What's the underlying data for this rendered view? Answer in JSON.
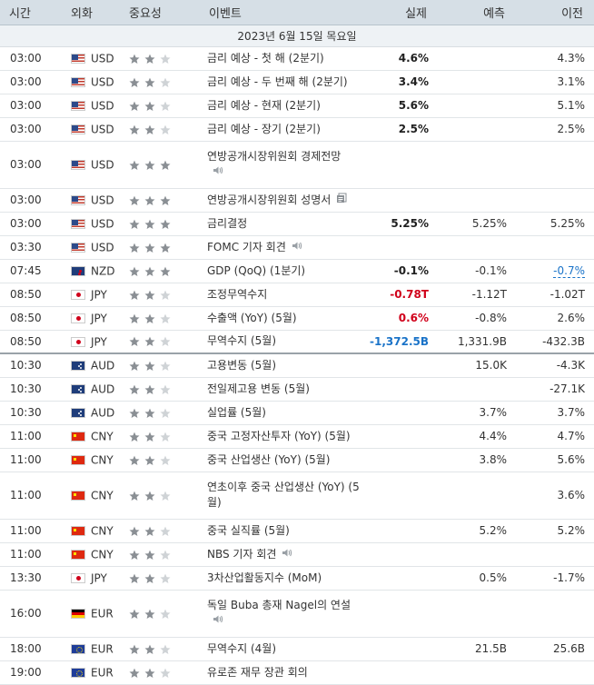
{
  "header": {
    "time": "시간",
    "currency": "외화",
    "importance": "중요성",
    "event": "이벤트",
    "actual": "실제",
    "forecast": "예측",
    "previous": "이전"
  },
  "date_label": "2023년 6월 15일 목요일",
  "colors": {
    "red": "#d0021b",
    "blue": "#1a73c8",
    "header_bg": "#d6dfe6",
    "star_on": "#8a8f94",
    "star_off": "#cfd3d6"
  },
  "rows": [
    {
      "time": "03:00",
      "flag": "us",
      "cur": "USD",
      "stars": 2,
      "event": "금리 예상 - 첫 해 (2분기)",
      "actual": "4.6%",
      "actual_color": "#1f1f1f",
      "forecast": "",
      "previous": "4.3%",
      "icon": ""
    },
    {
      "time": "03:00",
      "flag": "us",
      "cur": "USD",
      "stars": 2,
      "event": "금리 예상 - 두 번째 해 (2분기)",
      "actual": "3.4%",
      "actual_color": "#1f1f1f",
      "forecast": "",
      "previous": "3.1%",
      "icon": ""
    },
    {
      "time": "03:00",
      "flag": "us",
      "cur": "USD",
      "stars": 2,
      "event": "금리 예상 - 현재 (2분기)",
      "actual": "5.6%",
      "actual_color": "#1f1f1f",
      "forecast": "",
      "previous": "5.1%",
      "icon": ""
    },
    {
      "time": "03:00",
      "flag": "us",
      "cur": "USD",
      "stars": 2,
      "event": "금리 예상 - 장기 (2분기)",
      "actual": "2.5%",
      "actual_color": "#1f1f1f",
      "forecast": "",
      "previous": "2.5%",
      "icon": ""
    },
    {
      "time": "03:00",
      "flag": "us",
      "cur": "USD",
      "stars": 3,
      "event": "연방공개시장위원회 경제전망",
      "actual": "",
      "actual_color": "#1f1f1f",
      "forecast": "",
      "previous": "",
      "icon": "speaker",
      "tall": true
    },
    {
      "time": "03:00",
      "flag": "us",
      "cur": "USD",
      "stars": 3,
      "event": "연방공개시장위원회 성명서",
      "actual": "",
      "actual_color": "#1f1f1f",
      "forecast": "",
      "previous": "",
      "icon": "doc"
    },
    {
      "time": "03:00",
      "flag": "us",
      "cur": "USD",
      "stars": 3,
      "event": "금리결정",
      "actual": "5.25%",
      "actual_color": "#1f1f1f",
      "forecast": "5.25%",
      "previous": "5.25%",
      "icon": ""
    },
    {
      "time": "03:30",
      "flag": "us",
      "cur": "USD",
      "stars": 3,
      "event": "FOMC 기자 회견",
      "actual": "",
      "actual_color": "#1f1f1f",
      "forecast": "",
      "previous": "",
      "icon": "speaker"
    },
    {
      "time": "07:45",
      "flag": "nz",
      "cur": "NZD",
      "stars": 3,
      "event": "GDP (QoQ) (1분기)",
      "actual": "-0.1%",
      "actual_color": "#1f1f1f",
      "forecast": "-0.1%",
      "previous": "-0.7%",
      "previous_style": "dotted",
      "icon": ""
    },
    {
      "time": "08:50",
      "flag": "jp",
      "cur": "JPY",
      "stars": 2,
      "event": "조정무역수지",
      "actual": "-0.78T",
      "actual_color": "#d0021b",
      "forecast": "-1.12T",
      "previous": "-1.02T",
      "icon": ""
    },
    {
      "time": "08:50",
      "flag": "jp",
      "cur": "JPY",
      "stars": 2,
      "event": "수출액 (YoY) (5월)",
      "actual": "0.6%",
      "actual_color": "#d0021b",
      "forecast": "-0.8%",
      "previous": "2.6%",
      "icon": ""
    },
    {
      "time": "08:50",
      "flag": "jp",
      "cur": "JPY",
      "stars": 2,
      "event": "무역수지 (5월)",
      "actual": "-1,372.5B",
      "actual_color": "#1a73c8",
      "forecast": "1,331.9B",
      "previous": "-432.3B",
      "icon": "",
      "sep": true
    },
    {
      "time": "10:30",
      "flag": "au",
      "cur": "AUD",
      "stars": 2,
      "event": "고용변동 (5월)",
      "actual": "",
      "actual_color": "#1f1f1f",
      "forecast": "15.0K",
      "previous": "-4.3K",
      "icon": ""
    },
    {
      "time": "10:30",
      "flag": "au",
      "cur": "AUD",
      "stars": 2,
      "event": "전일제고용 변동 (5월)",
      "actual": "",
      "actual_color": "#1f1f1f",
      "forecast": "",
      "previous": "-27.1K",
      "icon": ""
    },
    {
      "time": "10:30",
      "flag": "au",
      "cur": "AUD",
      "stars": 2,
      "event": "실업률 (5월)",
      "actual": "",
      "actual_color": "#1f1f1f",
      "forecast": "3.7%",
      "previous": "3.7%",
      "icon": ""
    },
    {
      "time": "11:00",
      "flag": "cn",
      "cur": "CNY",
      "stars": 2,
      "event": "중국 고정자산투자 (YoY) (5월)",
      "actual": "",
      "actual_color": "#1f1f1f",
      "forecast": "4.4%",
      "previous": "4.7%",
      "icon": ""
    },
    {
      "time": "11:00",
      "flag": "cn",
      "cur": "CNY",
      "stars": 2,
      "event": "중국 산업생산 (YoY) (5월)",
      "actual": "",
      "actual_color": "#1f1f1f",
      "forecast": "3.8%",
      "previous": "5.6%",
      "icon": ""
    },
    {
      "time": "11:00",
      "flag": "cn",
      "cur": "CNY",
      "stars": 2,
      "event": "연초이후 중국 산업생산 (YoY) (5월)",
      "actual": "",
      "actual_color": "#1f1f1f",
      "forecast": "",
      "previous": "3.6%",
      "icon": "",
      "tall": true
    },
    {
      "time": "11:00",
      "flag": "cn",
      "cur": "CNY",
      "stars": 2,
      "event": "중국 실직률 (5월)",
      "actual": "",
      "actual_color": "#1f1f1f",
      "forecast": "5.2%",
      "previous": "5.2%",
      "icon": ""
    },
    {
      "time": "11:00",
      "flag": "cn",
      "cur": "CNY",
      "stars": 2,
      "event": "NBS 기자 회견",
      "actual": "",
      "actual_color": "#1f1f1f",
      "forecast": "",
      "previous": "",
      "icon": "speaker"
    },
    {
      "time": "13:30",
      "flag": "jp",
      "cur": "JPY",
      "stars": 2,
      "event": "3차산업활동지수 (MoM)",
      "actual": "",
      "actual_color": "#1f1f1f",
      "forecast": "0.5%",
      "previous": "-1.7%",
      "icon": ""
    },
    {
      "time": "16:00",
      "flag": "de",
      "cur": "EUR",
      "stars": 2,
      "event": "독일 Buba 총재 Nagel의 연설",
      "actual": "",
      "actual_color": "#1f1f1f",
      "forecast": "",
      "previous": "",
      "icon": "speaker",
      "tall": true
    },
    {
      "time": "18:00",
      "flag": "eu",
      "cur": "EUR",
      "stars": 2,
      "event": "무역수지 (4월)",
      "actual": "",
      "actual_color": "#1f1f1f",
      "forecast": "21.5B",
      "previous": "25.6B",
      "icon": ""
    },
    {
      "time": "19:00",
      "flag": "eu",
      "cur": "EUR",
      "stars": 2,
      "event": "유로존 재무 장관 회의",
      "actual": "",
      "actual_color": "#1f1f1f",
      "forecast": "",
      "previous": "",
      "icon": ""
    }
  ]
}
